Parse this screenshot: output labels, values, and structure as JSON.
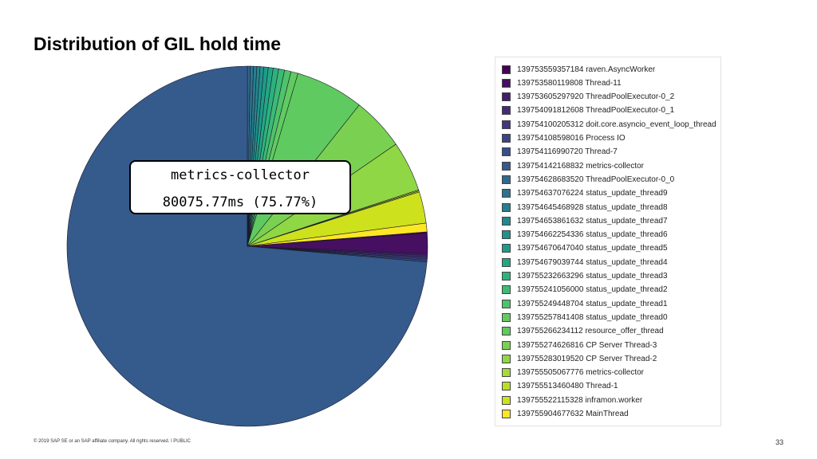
{
  "slide": {
    "title": "Distribution of GIL hold time",
    "footer": "© 2019 SAP SE or an SAP affiliate company. All rights reserved.  ǀ  PUBLIC",
    "page_number": "33"
  },
  "tooltip": {
    "name": "metrics-collector",
    "value": "80075.77ms (75.77%)"
  },
  "chart_data": {
    "type": "pie",
    "title": "Distribution of GIL hold time",
    "start_angle_deg": -4.6,
    "direction": "clockwise",
    "slices": [
      {
        "label": "139753559357184 raven.AsyncWorker",
        "percent": 0.15,
        "color": "#440154"
      },
      {
        "label": "139753580119808 Thread-11",
        "percent": 1.85,
        "color": "#470f62"
      },
      {
        "label": "139753605297920 ThreadPoolExecutor-0_2",
        "percent": 0.15,
        "color": "#471d6f"
      },
      {
        "label": "139754091812608 ThreadPoolExecutor-0_1",
        "percent": 0.15,
        "color": "#462a7a"
      },
      {
        "label": "139754100205312 doit.core.asyncio_event_loop_thread",
        "percent": 0.15,
        "color": "#423681"
      },
      {
        "label": "139754108598016 Process IO",
        "percent": 0.15,
        "color": "#3d4486"
      },
      {
        "label": "139754116990720 Thread-7",
        "percent": 0.15,
        "color": "#37508a"
      },
      {
        "label": "139754142168832 metrics-collector",
        "percent": 75.77,
        "color": "#355a8c"
      },
      {
        "label": "139754628683520 ThreadPoolExecutor-0_0",
        "percent": 0.25,
        "color": "#31688e"
      },
      {
        "label": "139754637076224 status_update_thread9",
        "percent": 0.3,
        "color": "#2c738e"
      },
      {
        "label": "139754645468928 status_update_thread8",
        "percent": 0.3,
        "color": "#287d8e"
      },
      {
        "label": "139754653861632 status_update_thread7",
        "percent": 0.3,
        "color": "#24878e"
      },
      {
        "label": "139754662254336 status_update_thread6",
        "percent": 0.35,
        "color": "#20928c"
      },
      {
        "label": "139754670647040 status_update_thread5",
        "percent": 0.4,
        "color": "#1f9c89"
      },
      {
        "label": "139754679039744 status_update_thread4",
        "percent": 0.45,
        "color": "#22a785"
      },
      {
        "label": "139755232663296 status_update_thread3",
        "percent": 0.5,
        "color": "#2db27d"
      },
      {
        "label": "139755241056000 status_update_thread2",
        "percent": 0.55,
        "color": "#3bbb75"
      },
      {
        "label": "139755249448704 status_update_thread1",
        "percent": 0.6,
        "color": "#4ec36b"
      },
      {
        "label": "139755257841408 status_update_thread0",
        "percent": 0.65,
        "color": "#61cb5f"
      },
      {
        "label": "139755266234112 resource_offer_thread",
        "percent": 6.3,
        "color": "#5fca60"
      },
      {
        "label": "139755274626816 CP Server Thread-3",
        "percent": 4.9,
        "color": "#7ad151"
      },
      {
        "label": "139755283019520 CP Server Thread-2",
        "percent": 4.65,
        "color": "#8fd744"
      },
      {
        "label": "139755505067776 metrics-collector",
        "percent": 0.1,
        "color": "#a8db34"
      },
      {
        "label": "139755513460480 Thread-1",
        "percent": 0.1,
        "color": "#bade28"
      },
      {
        "label": "139755522115328 inframon.worker",
        "percent": 2.9,
        "color": "#cde11d"
      },
      {
        "label": "139755904677632 MainThread",
        "percent": 0.8,
        "color": "#fde725"
      }
    ]
  }
}
